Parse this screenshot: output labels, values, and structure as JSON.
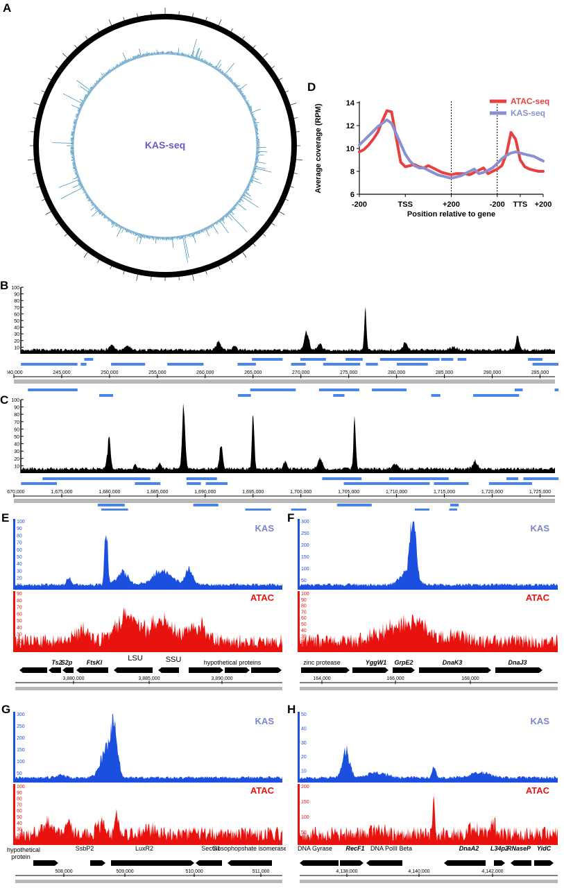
{
  "panels": {
    "A": {
      "label": "A",
      "center_text": "KAS-seq"
    },
    "B": {
      "label": "B",
      "axis": [
        "100",
        "90",
        "80",
        "70",
        "60",
        "50",
        "40",
        "30",
        "20",
        "10"
      ],
      "coords": [
        "240,000",
        "245,000",
        "250,000",
        "255,000",
        "260,000",
        "265,000",
        "270,000",
        "275,000",
        "280,000",
        "285,000",
        "290,000",
        "295,000"
      ]
    },
    "C": {
      "label": "C",
      "axis": [
        "100",
        "90",
        "80",
        "70",
        "60",
        "50",
        "40",
        "30",
        "20",
        "10"
      ],
      "coords": [
        "1,670,000",
        "1,675,000",
        "1,680,000",
        "1,685,000",
        "1,690,000",
        "1,695,000",
        "1,700,000",
        "1,705,000",
        "1,710,000",
        "1,715,000",
        "1,720,000",
        "1,725,000"
      ]
    },
    "D": {
      "label": "D"
    },
    "E": {
      "label": "E",
      "kas": "KAS",
      "atac": "ATAC",
      "kas_axis": [
        "100",
        "90",
        "80",
        "70",
        "60",
        "50",
        "40",
        "30",
        "20",
        "10"
      ],
      "atac_axis": [
        "90",
        "80",
        "70",
        "60",
        "50",
        "40",
        "30",
        "20",
        "10"
      ],
      "genes": [
        "Ts2",
        "S2p",
        "FtsKl",
        "LSU",
        "SSU",
        "hypothetical proteins"
      ],
      "coords": [
        "3,880,000",
        "3,885,000",
        "3,890,000"
      ]
    },
    "F": {
      "label": "F",
      "kas": "KAS",
      "atac": "ATAC",
      "kas_axis": [
        "300",
        "250",
        "200",
        "150",
        "100",
        "50"
      ],
      "atac_axis": [
        "100",
        "90",
        "80",
        "70",
        "60",
        "50",
        "40",
        "30",
        "20",
        "10"
      ],
      "genes": [
        "zinc protease",
        "YggW1",
        "GrpE2",
        "DnaK3",
        "DnaJ3"
      ],
      "coords": [
        "164,000",
        "166,000",
        "168,000"
      ]
    },
    "G": {
      "label": "G",
      "kas": "KAS",
      "atac": "ATAC",
      "kas_axis": [
        "300",
        "250",
        "200",
        "150",
        "100",
        "50"
      ],
      "atac_axis": [
        "100",
        "90",
        "80",
        "70",
        "60",
        "50",
        "40",
        "30",
        "20",
        "10"
      ],
      "genes": [
        "hypothetical",
        "protein",
        "SsbP2",
        "LuxR2",
        "SecG1",
        "triosophopshate isomerase"
      ],
      "coords": [
        "508,000",
        "509,000",
        "510,000",
        "511,000"
      ]
    },
    "H": {
      "label": "H",
      "kas": "KAS",
      "atac": "ATAC",
      "kas_axis": [
        "50",
        "40",
        "30",
        "20",
        "10"
      ],
      "atac_axis": [
        "200",
        "150",
        "100",
        "50"
      ],
      "genes": [
        "DNA Gyrase",
        "RecF1",
        "DNA PolII Beta",
        "DnaA2",
        "L34p2",
        "RNaseP",
        "YidC"
      ],
      "coords": [
        "4,138,000",
        "4,140,000",
        "4,142,000"
      ]
    }
  },
  "chart_data": {
    "type": "line",
    "ylabel": "Average coverage (RPM)",
    "xlabel": "Position relative to gene",
    "x_ticks": [
      "-200",
      "TSS",
      "+200",
      "-200",
      "TTS",
      "+200"
    ],
    "ylim": [
      6,
      14
    ],
    "y_ticks": [
      "14",
      "12",
      "10",
      "8",
      "6"
    ],
    "x": [
      0,
      0.5,
      1,
      1.5,
      2,
      2.5,
      3,
      3.5,
      4,
      4.5,
      5,
      5.5,
      6,
      6.5,
      7,
      7.5,
      8,
      8.5,
      9,
      9.5,
      10,
      10.5,
      11,
      11.5,
      12,
      12.5,
      13,
      13.5,
      14,
      14.5,
      15,
      15.5,
      16,
      16.5,
      17,
      17.5,
      18,
      18.5,
      19,
      19.5,
      20
    ],
    "series": [
      {
        "name": "ATAC-seq",
        "color": "#e8403e",
        "values": [
          9.7,
          9.9,
          10.3,
          10.8,
          11.4,
          12.4,
          13.3,
          13.2,
          11.0,
          8.8,
          8.4,
          8.5,
          8.6,
          8.4,
          8.3,
          8.5,
          8.3,
          8.1,
          7.9,
          7.8,
          7.7,
          7.8,
          7.8,
          7.8,
          7.7,
          7.9,
          8.1,
          8.3,
          7.8,
          8.0,
          8.2,
          8.5,
          9.5,
          11.4,
          10.8,
          9.0,
          8.4,
          8.2,
          8.1,
          8.0,
          8.0
        ]
      },
      {
        "name": "KAS-seq",
        "color": "#8a8fd0",
        "values": [
          10.3,
          10.7,
          11.1,
          11.5,
          11.9,
          12.2,
          12.5,
          12.2,
          11.3,
          10.4,
          9.5,
          8.9,
          8.5,
          8.3,
          8.3,
          8.1,
          7.9,
          7.7,
          7.6,
          7.5,
          7.4,
          7.5,
          7.6,
          7.8,
          8.0,
          8.2,
          7.8,
          7.9,
          8.1,
          8.3,
          8.7,
          9.1,
          9.4,
          9.6,
          9.7,
          9.6,
          9.5,
          9.4,
          9.3,
          9.1,
          8.9
        ]
      }
    ],
    "legend": "top-right"
  },
  "colors": {
    "kas": "#1a4fe0",
    "atac": "#e8120f",
    "gene": "#4a86e8",
    "black": "#000000"
  }
}
